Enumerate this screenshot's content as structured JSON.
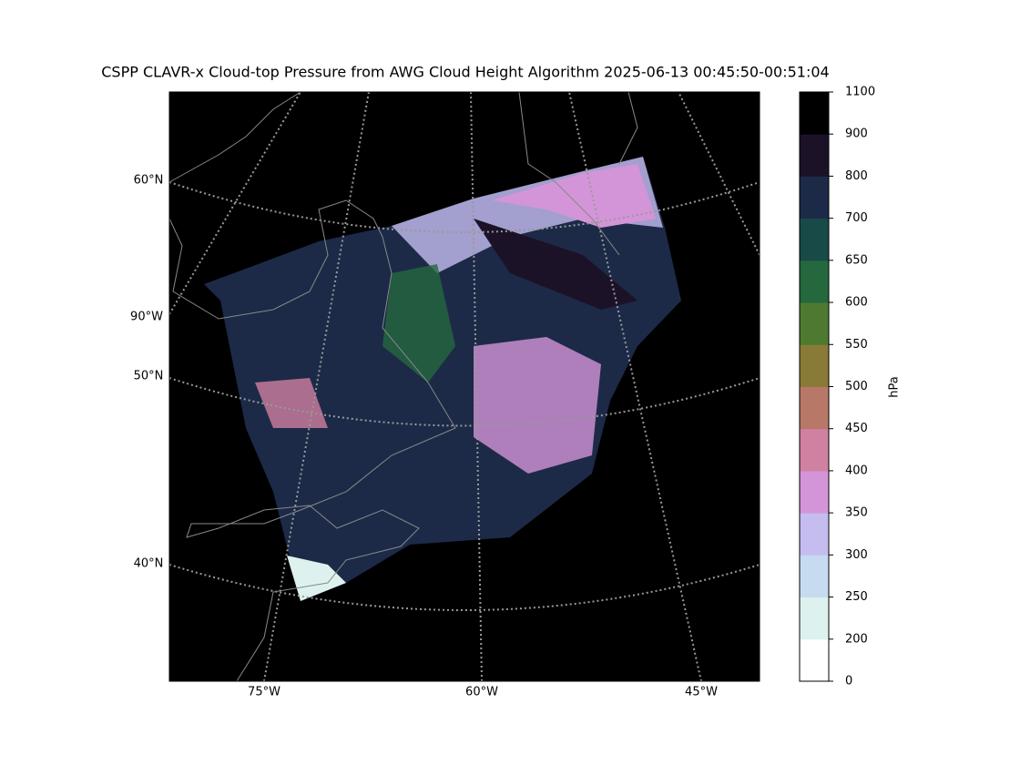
{
  "title": "CSPP CLAVR-x Cloud-top Pressure from AWG Cloud Height Algorithm 2025-06-13 00:45:50-00:51:04",
  "map": {
    "lat_labels": [
      "60°N",
      "90°W",
      "50°N",
      "40°N"
    ],
    "lon_labels": [
      "75°W",
      "60°W",
      "45°W"
    ]
  },
  "colorbar": {
    "label": "hPa",
    "boundaries": [
      0,
      200,
      250,
      300,
      350,
      400,
      450,
      500,
      550,
      600,
      650,
      700,
      800,
      900,
      1100
    ],
    "colors": [
      "#ffffff",
      "#ddf2ee",
      "#c6dbf0",
      "#c5bdf0",
      "#d395d8",
      "#d080a0",
      "#b87868",
      "#8a7a38",
      "#4e7a30",
      "#25683e",
      "#184a48",
      "#1c2a48",
      "#1c1228",
      "#000000"
    ]
  }
}
